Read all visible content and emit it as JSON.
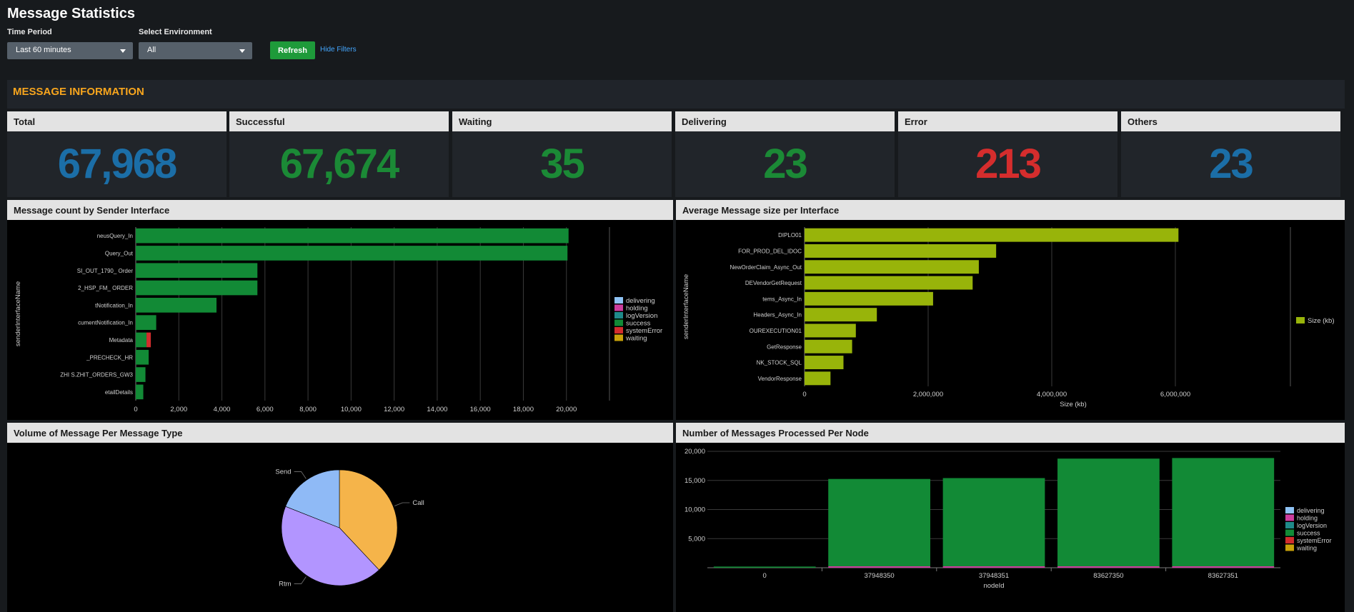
{
  "header": {
    "title": "Message Statistics"
  },
  "filters": {
    "time_label": "Time Period",
    "time_value": "Last 60 minutes",
    "env_label": "Select Environment",
    "env_value": "All",
    "refresh_label": "Refresh",
    "hide_label": "Hide Filters"
  },
  "section": {
    "title": "MESSAGE INFORMATION"
  },
  "stats": [
    {
      "label": "Total",
      "value": "67,968",
      "color": "#1b6ea7"
    },
    {
      "label": "Successful",
      "value": "67,674",
      "color": "#1b8a36"
    },
    {
      "label": "Waiting",
      "value": "35",
      "color": "#1b8a36"
    },
    {
      "label": "Delivering",
      "value": "23",
      "color": "#1b8a36"
    },
    {
      "label": "Error",
      "value": "213",
      "color": "#d52d2d"
    },
    {
      "label": "Others",
      "value": "23",
      "color": "#1b6ea7"
    }
  ],
  "panels": {
    "sender": "Message count by Sender Interface",
    "size": "Average Message size per Interface",
    "pie": "Volume of Message Per Message Type",
    "node": "Number of Messages Processed Per Node"
  },
  "status_colors": {
    "delivering": "#8fc3f5",
    "holding": "#cc3d9e",
    "logVersion": "#1f8a8a",
    "success": "#128a36",
    "systemError": "#d22d2d",
    "waiting": "#c9a20a"
  },
  "chart_data": [
    {
      "type": "bar",
      "orientation": "horizontal",
      "stacked": true,
      "ylabel": "senderInterfaceName",
      "categories": [
        "neusQuery_In",
        "Query_Out",
        "SI_OUT_1790_ Order",
        "2_HSP_FM_ ORDER",
        "tNotification_In",
        "cumentNotification_In",
        "Metadata",
        "_PRECHECK_HR",
        "ZHI S.ZHIT_ORDERS_GW3",
        "etailDetails"
      ],
      "xticks": [
        0,
        2000,
        4000,
        6000,
        8000,
        10000,
        12000,
        14000,
        16000,
        18000,
        20000
      ],
      "xtick_labels": [
        "0",
        "2,000",
        "4,000",
        "6,000",
        "8,000",
        "10,000",
        "12,000",
        "14,000",
        "16,000",
        "18,000",
        "20,000"
      ],
      "xlim": [
        0,
        22000
      ],
      "legend": "right",
      "series": [
        {
          "name": "delivering",
          "values": [
            0,
            0,
            0,
            0,
            0,
            0,
            0,
            0,
            0,
            0
          ]
        },
        {
          "name": "holding",
          "values": [
            0,
            0,
            0,
            0,
            0,
            0,
            0,
            0,
            0,
            0
          ]
        },
        {
          "name": "logVersion",
          "values": [
            0,
            0,
            0,
            0,
            0,
            0,
            0,
            0,
            0,
            0
          ]
        },
        {
          "name": "success",
          "values": [
            20100,
            20050,
            5650,
            5650,
            3750,
            950,
            500,
            600,
            450,
            350
          ]
        },
        {
          "name": "systemError",
          "values": [
            0,
            0,
            0,
            0,
            0,
            0,
            200,
            0,
            0,
            0
          ]
        },
        {
          "name": "waiting",
          "values": [
            0,
            0,
            0,
            0,
            0,
            0,
            0,
            0,
            0,
            0
          ]
        }
      ]
    },
    {
      "type": "bar",
      "orientation": "horizontal",
      "ylabel": "senderInterfaceName",
      "xlabel": "Size (kb)",
      "categories": [
        "DIPLO01",
        "FOR_PROD_DEL_IDOC",
        "NewOrderClaim_Async_Out",
        "DEVendorGetRequest",
        "tems_Async_In",
        "Headers_Async_In",
        "OUREXECUTION01",
        "GetResponse",
        "NK_STOCK_SQL",
        "VendorResponse"
      ],
      "xticks": [
        0,
        2000000,
        4000000,
        6000000
      ],
      "xtick_labels": [
        "0",
        "2,000,000",
        "4,000,000",
        "6,000,000"
      ],
      "xlim": [
        0,
        8000000
      ],
      "legend": "right",
      "series": [
        {
          "name": "Size (kb)",
          "values": [
            6050000,
            3100000,
            2820000,
            2720000,
            2080000,
            1170000,
            830000,
            770000,
            630000,
            420000
          ]
        }
      ]
    },
    {
      "type": "pie",
      "slices": [
        {
          "label": "Call",
          "value": 38
        },
        {
          "label": "Rtm",
          "value": 43
        },
        {
          "label": "Send",
          "value": 19
        }
      ]
    },
    {
      "type": "bar",
      "stacked": true,
      "xlabel": "nodeId",
      "categories": [
        "0",
        "37948350",
        "37948351",
        "83627350",
        "83627351"
      ],
      "yticks": [
        5000,
        10000,
        15000,
        20000
      ],
      "ytick_labels": [
        "5,000",
        "10,000",
        "15,000",
        "20,000"
      ],
      "ylim": [
        0,
        20000
      ],
      "legend": "right",
      "series": [
        {
          "name": "delivering",
          "values": [
            0,
            0,
            0,
            0,
            0
          ]
        },
        {
          "name": "holding",
          "values": [
            0,
            250,
            250,
            250,
            250
          ]
        },
        {
          "name": "logVersion",
          "values": [
            0,
            0,
            0,
            0,
            0
          ]
        },
        {
          "name": "success",
          "values": [
            200,
            15000,
            15150,
            18500,
            18600
          ]
        },
        {
          "name": "systemError",
          "values": [
            0,
            0,
            0,
            0,
            0
          ]
        },
        {
          "name": "waiting",
          "values": [
            0,
            0,
            0,
            0,
            0
          ]
        }
      ]
    }
  ]
}
